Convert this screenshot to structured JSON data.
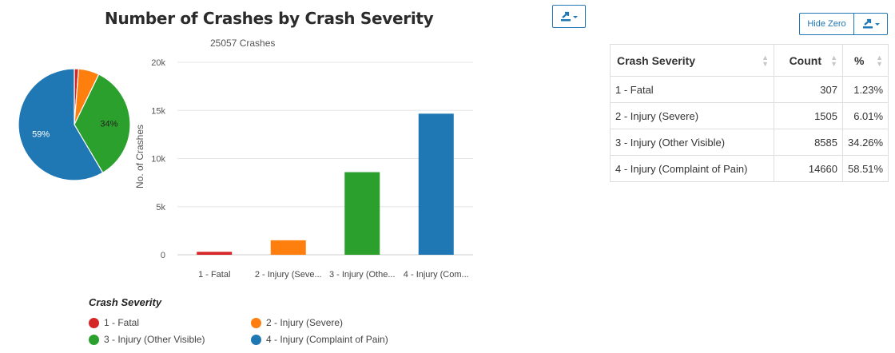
{
  "title": "Number of Crashes by Crash Severity",
  "subtitle": "25057 Crashes",
  "hide_zero_label": "Hide Zero",
  "chart_data": [
    {
      "type": "pie",
      "categories": [
        "1 - Fatal",
        "2 - Injury (Severe)",
        "3 - Injury (Other Visible)",
        "4 - Injury (Complaint of Pain)"
      ],
      "values": [
        307,
        1505,
        8585,
        14660
      ],
      "labels_shown": [
        "",
        "",
        "34%",
        "59%"
      ],
      "colors": [
        "#d62728",
        "#ff7f0e",
        "#2ca02c",
        "#1f77b4"
      ]
    },
    {
      "type": "bar",
      "categories": [
        "1 - Fatal",
        "2 - Injury (Seve...",
        "3 - Injury (Othe...",
        "4 - Injury (Com..."
      ],
      "values": [
        307,
        1505,
        8585,
        14660
      ],
      "colors": [
        "#d62728",
        "#ff7f0e",
        "#2ca02c",
        "#1f77b4"
      ],
      "ylabel": "No. of Crashes",
      "yticks": [
        "0",
        "5k",
        "10k",
        "15k",
        "20k"
      ],
      "ylim": [
        0,
        20000
      ],
      "grid": true
    }
  ],
  "legend": {
    "title": "Crash Severity",
    "items": [
      {
        "label": "1 - Fatal",
        "color": "#d62728"
      },
      {
        "label": "2 - Injury (Severe)",
        "color": "#ff7f0e"
      },
      {
        "label": "3 - Injury (Other Visible)",
        "color": "#2ca02c"
      },
      {
        "label": "4 - Injury (Complaint of Pain)",
        "color": "#1f77b4"
      }
    ]
  },
  "table": {
    "headers": [
      "Crash Severity",
      "Count",
      "%"
    ],
    "rows": [
      {
        "severity": "1 - Fatal",
        "count": "307",
        "pct": "1.23%"
      },
      {
        "severity": "2 - Injury (Severe)",
        "count": "1505",
        "pct": "6.01%"
      },
      {
        "severity": "3 - Injury (Other Visible)",
        "count": "8585",
        "pct": "34.26%"
      },
      {
        "severity": "4 - Injury (Complaint of Pain)",
        "count": "14660",
        "pct": "58.51%"
      }
    ]
  }
}
